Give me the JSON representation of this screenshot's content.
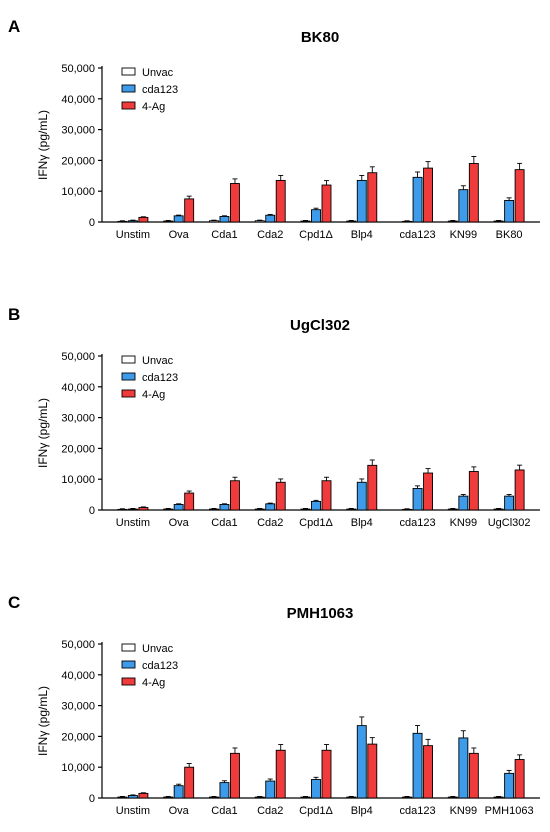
{
  "legend_labels": [
    "Unvac",
    "cda123",
    "4-Ag"
  ],
  "colors": {
    "Unvac": "#ffffff",
    "cda123": "#3d9bea",
    "4-Ag": "#ef3b3b",
    "axis": "#000000"
  },
  "ylabel": "IFNγ (pg/mL)",
  "yticks": [
    "0",
    "10,000",
    "20,000",
    "30,000",
    "40,000",
    "50,000"
  ],
  "chart_data": [
    {
      "type": "bar",
      "panel": "A",
      "title": "BK80",
      "categories": [
        "Unstim",
        "Ova",
        "Cda1",
        "Cda2",
        "Cpd1Δ",
        "Blp4",
        "cda123",
        "KN99",
        "BK80"
      ],
      "ylabel": "IFNγ (pg/mL)",
      "ylim": [
        0,
        50000
      ],
      "legend": "top-left",
      "series": [
        {
          "name": "Unvac",
          "values": [
            200,
            300,
            400,
            400,
            300,
            300,
            200,
            300,
            300
          ]
        },
        {
          "name": "cda123",
          "values": [
            400,
            2000,
            1800,
            2200,
            4000,
            13500,
            14500,
            10500,
            7000
          ]
        },
        {
          "name": "4-Ag",
          "values": [
            1500,
            7500,
            12500,
            13500,
            12000,
            16000,
            17500,
            19000,
            17000
          ]
        }
      ]
    },
    {
      "type": "bar",
      "panel": "B",
      "title": "UgCl302",
      "categories": [
        "Unstim",
        "Ova",
        "Cda1",
        "Cda2",
        "Cpd1Δ",
        "Blp4",
        "cda123",
        "KN99",
        "UgCl302"
      ],
      "ylabel": "IFNγ (pg/mL)",
      "ylim": [
        0,
        50000
      ],
      "legend": "top-left",
      "series": [
        {
          "name": "Unvac",
          "values": [
            200,
            300,
            300,
            300,
            300,
            300,
            200,
            300,
            300
          ]
        },
        {
          "name": "cda123",
          "values": [
            300,
            1800,
            1800,
            2000,
            2800,
            9000,
            7000,
            4500,
            4500
          ]
        },
        {
          "name": "4-Ag",
          "values": [
            800,
            5500,
            9500,
            9000,
            9500,
            14500,
            12000,
            12500,
            13000
          ]
        }
      ]
    },
    {
      "type": "bar",
      "panel": "C",
      "title": "PMH1063",
      "categories": [
        "Unstim",
        "Ova",
        "Cda1",
        "Cda2",
        "Cpd1Δ",
        "Blp4",
        "cda123",
        "KN99",
        "PMH1063"
      ],
      "ylabel": "IFNγ (pg/mL)",
      "ylim": [
        0,
        50000
      ],
      "legend": "top-left",
      "series": [
        {
          "name": "Unvac",
          "values": [
            300,
            300,
            300,
            300,
            300,
            300,
            300,
            300,
            300
          ]
        },
        {
          "name": "cda123",
          "values": [
            800,
            4000,
            5000,
            5500,
            6000,
            23500,
            21000,
            19500,
            8000
          ]
        },
        {
          "name": "4-Ag",
          "values": [
            1500,
            10000,
            14500,
            15500,
            15500,
            17500,
            17000,
            14500,
            12500
          ]
        }
      ]
    }
  ]
}
